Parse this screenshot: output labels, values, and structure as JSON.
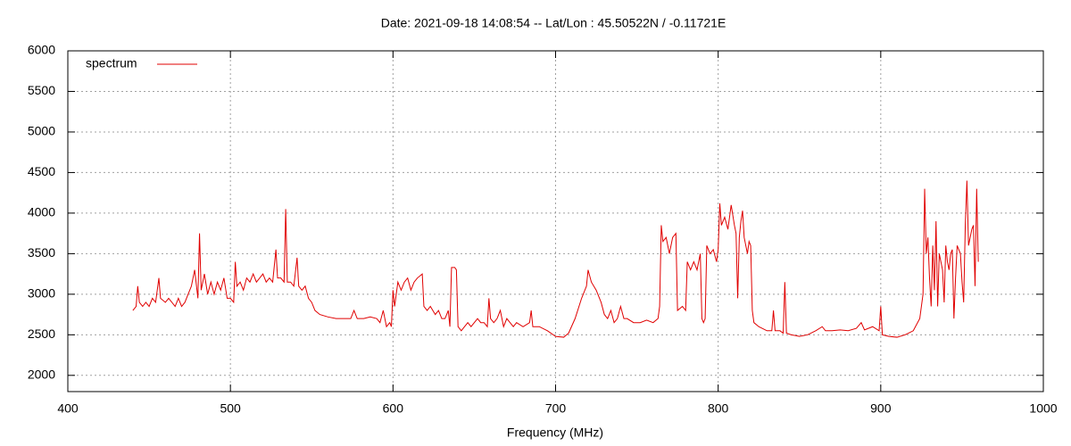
{
  "chart_data": {
    "type": "line",
    "title": "Date: 2021-09-18 14:08:54  --  Lat/Lon : 45.50522N / -0.11721E",
    "xlabel": "Frequency (MHz)",
    "xlim": [
      400,
      1000
    ],
    "xticks": [
      400,
      500,
      600,
      700,
      800,
      900,
      1000
    ],
    "ylim": [
      1800,
      6000
    ],
    "yticks": [
      2000,
      2500,
      3000,
      3500,
      4000,
      4500,
      5000,
      5500,
      6000
    ],
    "grid": true,
    "legend": "top-left",
    "x": [
      440,
      442,
      443,
      444,
      446,
      448,
      450,
      452,
      454,
      456,
      457,
      460,
      462,
      464,
      466,
      468,
      470,
      472,
      474,
      476,
      478,
      480,
      481,
      482,
      484,
      486,
      488,
      490,
      492,
      494,
      496,
      498,
      500,
      502,
      503,
      504,
      506,
      508,
      510,
      512,
      514,
      516,
      518,
      520,
      522,
      524,
      526,
      528,
      529,
      531,
      533,
      534,
      535,
      537,
      539,
      541,
      542,
      544,
      546,
      548,
      550,
      552,
      555,
      560,
      565,
      570,
      574,
      576,
      578,
      582,
      586,
      590,
      592,
      594,
      596,
      598,
      599,
      600,
      601,
      603,
      605,
      607,
      609,
      611,
      613,
      615,
      618,
      619,
      621,
      623,
      626,
      628,
      630,
      632,
      634,
      635,
      636,
      638,
      639,
      640,
      642,
      644,
      646,
      648,
      650,
      652,
      654,
      656,
      658,
      659,
      660,
      662,
      664,
      666,
      668,
      670,
      672,
      674,
      676,
      680,
      684,
      685,
      686,
      690,
      695,
      700,
      705,
      708,
      712,
      716,
      719,
      720,
      722,
      725,
      728,
      730,
      732,
      734,
      736,
      738,
      740,
      742,
      744,
      748,
      752,
      756,
      760,
      763,
      764,
      765,
      766,
      768,
      770,
      772,
      774,
      775,
      778,
      780,
      781,
      783,
      785,
      787,
      789,
      790,
      791,
      792,
      793,
      795,
      797,
      799,
      800,
      801,
      802,
      804,
      806,
      808,
      810,
      811,
      812,
      813,
      814,
      815,
      816,
      818,
      819,
      820,
      821,
      822,
      825,
      830,
      833,
      834,
      835,
      838,
      840,
      841,
      842,
      845,
      850,
      855,
      860,
      864,
      866,
      870,
      875,
      880,
      885,
      888,
      890,
      895,
      899,
      900,
      901,
      905,
      910,
      915,
      920,
      924,
      926,
      927,
      928,
      929,
      930,
      931,
      932,
      933,
      934,
      935,
      936,
      938,
      939,
      940,
      941,
      942,
      943,
      944,
      945,
      946,
      947,
      949,
      950,
      951,
      952,
      953,
      954,
      956,
      957,
      958,
      959,
      960
    ],
    "series": [
      {
        "name": "spectrum",
        "color": "#e00000",
        "values": [
          2800,
          2850,
          3100,
          2900,
          2850,
          2900,
          2850,
          2950,
          2900,
          3200,
          2950,
          2900,
          2950,
          2900,
          2850,
          2950,
          2850,
          2900,
          3000,
          3100,
          3300,
          2950,
          3750,
          3050,
          3250,
          3000,
          3150,
          3000,
          3150,
          3050,
          3200,
          2950,
          2950,
          2900,
          3400,
          3100,
          3150,
          3050,
          3200,
          3150,
          3250,
          3150,
          3200,
          3250,
          3150,
          3200,
          3150,
          3550,
          3200,
          3200,
          3150,
          4050,
          3150,
          3150,
          3100,
          3450,
          3100,
          3050,
          3100,
          2950,
          2900,
          2800,
          2750,
          2720,
          2700,
          2700,
          2700,
          2800,
          2700,
          2700,
          2720,
          2700,
          2650,
          2800,
          2600,
          2650,
          2600,
          3050,
          2850,
          3150,
          3050,
          3150,
          3200,
          3050,
          3150,
          3200,
          3250,
          2850,
          2800,
          2850,
          2750,
          2800,
          2700,
          2700,
          2800,
          2600,
          3330,
          3330,
          3300,
          2600,
          2550,
          2600,
          2650,
          2600,
          2650,
          2700,
          2650,
          2650,
          2600,
          2950,
          2700,
          2650,
          2700,
          2800,
          2600,
          2700,
          2650,
          2600,
          2650,
          2600,
          2650,
          2800,
          2600,
          2600,
          2550,
          2480,
          2470,
          2520,
          2700,
          2950,
          3100,
          3300,
          3150,
          3050,
          2900,
          2750,
          2700,
          2800,
          2650,
          2700,
          2850,
          2700,
          2700,
          2650,
          2650,
          2680,
          2650,
          2700,
          2850,
          3850,
          3650,
          3700,
          3500,
          3700,
          3750,
          2800,
          2850,
          2800,
          3400,
          3300,
          3400,
          3300,
          3500,
          2700,
          2650,
          2700,
          3600,
          3500,
          3550,
          3400,
          3550,
          4120,
          3850,
          3950,
          3800,
          4100,
          3850,
          3750,
          2950,
          3700,
          3900,
          4030,
          3700,
          3500,
          3650,
          3600,
          2800,
          2650,
          2600,
          2550,
          2550,
          2800,
          2550,
          2550,
          2520,
          3150,
          2520,
          2500,
          2480,
          2500,
          2550,
          2600,
          2550,
          2550,
          2560,
          2550,
          2580,
          2650,
          2560,
          2600,
          2550,
          2850,
          2500,
          2480,
          2470,
          2500,
          2550,
          2700,
          3000,
          4300,
          3500,
          3700,
          3200,
          2850,
          3600,
          3050,
          3900,
          2850,
          3500,
          3300,
          2900,
          3600,
          3400,
          3300,
          3500,
          3550,
          2700,
          3200,
          3600,
          3500,
          3150,
          2900,
          3850,
          4400,
          3600,
          3800,
          3850,
          3100,
          4300,
          3400
        ]
      }
    ]
  }
}
